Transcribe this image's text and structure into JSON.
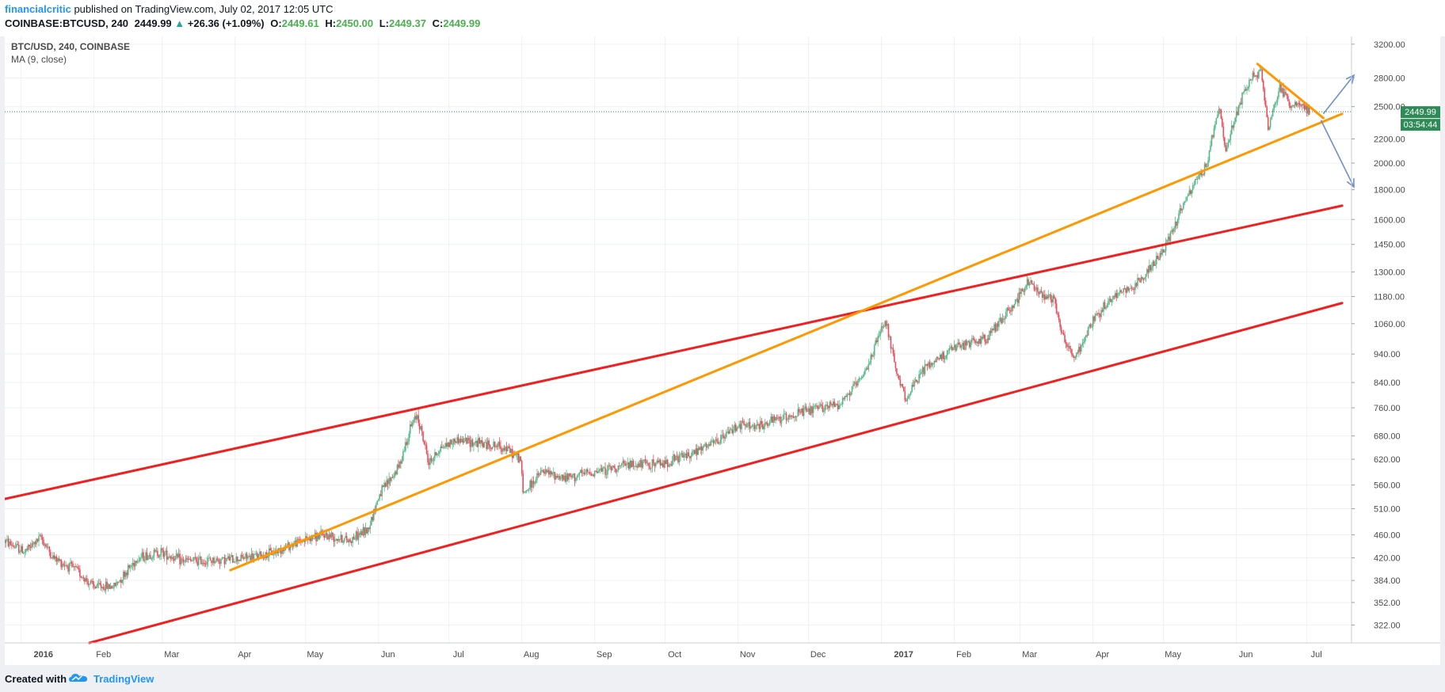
{
  "header": {
    "author": "financialcritic",
    "published": "published on TradingView.com, July 02, 2017 12:05 UTC",
    "symbol": "COINBASE:BTCUSD, 240",
    "last": "2449.99",
    "arrow": "▲",
    "change": "+26.36 (+1.09%)",
    "o_label": "O:",
    "o_value": "2449.61",
    "h_label": "H:",
    "h_value": "2450.00",
    "l_label": "L:",
    "l_value": "2449.37",
    "c_label": "C:",
    "c_value": "2449.99"
  },
  "chart": {
    "title": "BTC/USD, 240, COINBASE",
    "indicator": "MA (9, close)",
    "last_price_tag": "2449.99",
    "countdown_tag": "03:54:44"
  },
  "footer": {
    "created_with": "Created with",
    "brand": "TradingView",
    "logo_icon": "tradingview-cloud-icon"
  },
  "colors": {
    "channel": "#f02020",
    "orange": "#ff9800",
    "arrows": "#6f8fc9",
    "up_candle": "#53b987",
    "down_candle": "#eb4d5c",
    "tag": "#2e8b57",
    "brand": "#2196f3"
  },
  "chart_data": {
    "type": "candlestick",
    "title": "BTC/USD, 240, COINBASE",
    "yscale": "log",
    "ylim": [
      300,
      3300
    ],
    "y_ticks": [
      "3200.00",
      "2800.00",
      "2500.00",
      "2200.00",
      "2000.00",
      "1800.00",
      "1600.00",
      "1450.00",
      "1300.00",
      "1180.00",
      "1060.00",
      "940.00",
      "840.00",
      "760.00",
      "680.00",
      "620.00",
      "560.00",
      "510.00",
      "460.00",
      "420.00",
      "384.00",
      "352.00",
      "322.00"
    ],
    "x_ticks": [
      "2016",
      "Feb",
      "Mar",
      "Apr",
      "May",
      "Jun",
      "Jul",
      "Aug",
      "Sep",
      "Oct",
      "Nov",
      "Dec",
      "2017",
      "Feb",
      "Mar",
      "Apr",
      "May",
      "Jun",
      "Jul"
    ],
    "x_tick_dates": [
      "2016-01-01",
      "2016-02-01",
      "2016-03-01",
      "2016-04-01",
      "2016-05-01",
      "2016-06-01",
      "2016-07-01",
      "2016-08-01",
      "2016-09-01",
      "2016-10-01",
      "2016-11-01",
      "2016-12-01",
      "2017-01-01",
      "2017-02-01",
      "2017-03-01",
      "2017-04-01",
      "2017-05-01",
      "2017-06-01",
      "2017-07-01"
    ],
    "xlim": [
      "2015-12-25",
      "2017-07-20"
    ],
    "price_path": [
      [
        "2015-12-25",
        450
      ],
      [
        "2016-01-03",
        430
      ],
      [
        "2016-01-10",
        455
      ],
      [
        "2016-01-15",
        420
      ],
      [
        "2016-01-25",
        400
      ],
      [
        "2016-02-01",
        375
      ],
      [
        "2016-02-10",
        375
      ],
      [
        "2016-02-20",
        420
      ],
      [
        "2016-03-01",
        430
      ],
      [
        "2016-03-10",
        415
      ],
      [
        "2016-03-20",
        415
      ],
      [
        "2016-04-01",
        418
      ],
      [
        "2016-04-15",
        425
      ],
      [
        "2016-04-30",
        450
      ],
      [
        "2016-05-10",
        460
      ],
      [
        "2016-05-20",
        450
      ],
      [
        "2016-05-28",
        470
      ],
      [
        "2016-06-02",
        540
      ],
      [
        "2016-06-10",
        600
      ],
      [
        "2016-06-15",
        700
      ],
      [
        "2016-06-18",
        740
      ],
      [
        "2016-06-23",
        610
      ],
      [
        "2016-06-28",
        650
      ],
      [
        "2016-07-05",
        670
      ],
      [
        "2016-07-15",
        660
      ],
      [
        "2016-07-25",
        650
      ],
      [
        "2016-08-01",
        620
      ],
      [
        "2016-08-02",
        540
      ],
      [
        "2016-08-10",
        590
      ],
      [
        "2016-08-20",
        575
      ],
      [
        "2016-09-01",
        590
      ],
      [
        "2016-09-15",
        605
      ],
      [
        "2016-10-01",
        610
      ],
      [
        "2016-10-15",
        640
      ],
      [
        "2016-10-25",
        670
      ],
      [
        "2016-11-01",
        710
      ],
      [
        "2016-11-10",
        705
      ],
      [
        "2016-11-20",
        730
      ],
      [
        "2016-12-01",
        750
      ],
      [
        "2016-12-15",
        775
      ],
      [
        "2016-12-25",
        860
      ],
      [
        "2017-01-03",
        1080
      ],
      [
        "2017-01-05",
        1000
      ],
      [
        "2017-01-08",
        860
      ],
      [
        "2017-01-12",
        790
      ],
      [
        "2017-01-20",
        890
      ],
      [
        "2017-02-01",
        960
      ],
      [
        "2017-02-15",
        1000
      ],
      [
        "2017-02-25",
        1120
      ],
      [
        "2017-03-05",
        1250
      ],
      [
        "2017-03-10",
        1200
      ],
      [
        "2017-03-16",
        1170
      ],
      [
        "2017-03-20",
        1000
      ],
      [
        "2017-03-25",
        920
      ],
      [
        "2017-04-01",
        1070
      ],
      [
        "2017-04-10",
        1180
      ],
      [
        "2017-04-20",
        1240
      ],
      [
        "2017-05-01",
        1400
      ],
      [
        "2017-05-10",
        1700
      ],
      [
        "2017-05-20",
        2000
      ],
      [
        "2017-05-25",
        2500
      ],
      [
        "2017-05-28",
        2100
      ],
      [
        "2017-06-05",
        2700
      ],
      [
        "2017-06-12",
        2900
      ],
      [
        "2017-06-15",
        2300
      ],
      [
        "2017-06-20",
        2700
      ],
      [
        "2017-06-25",
        2500
      ],
      [
        "2017-06-28",
        2550
      ],
      [
        "2017-07-02",
        2450
      ]
    ],
    "trendlines": [
      {
        "color": "#f02020",
        "from": [
          "2015-12-25",
          530
        ],
        "to": [
          "2017-07-16",
          1690
        ]
      },
      {
        "color": "#f02020",
        "from": [
          "2016-01-30",
          300
        ],
        "to": [
          "2017-07-16",
          1150
        ]
      },
      {
        "color": "#ff9800",
        "from": [
          "2016-03-30",
          400
        ],
        "to": [
          "2017-07-16",
          2430
        ]
      },
      {
        "color": "#ff9800",
        "from": [
          "2017-06-10",
          2960
        ],
        "to": [
          "2017-07-08",
          2390
        ]
      }
    ],
    "arrows": [
      {
        "from": [
          "2017-07-08",
          2430
        ],
        "to": [
          "2017-07-21",
          2830
        ]
      },
      {
        "from": [
          "2017-07-07",
          2370
        ],
        "to": [
          "2017-07-21",
          1820
        ]
      }
    ],
    "last_price": 2449.99
  }
}
